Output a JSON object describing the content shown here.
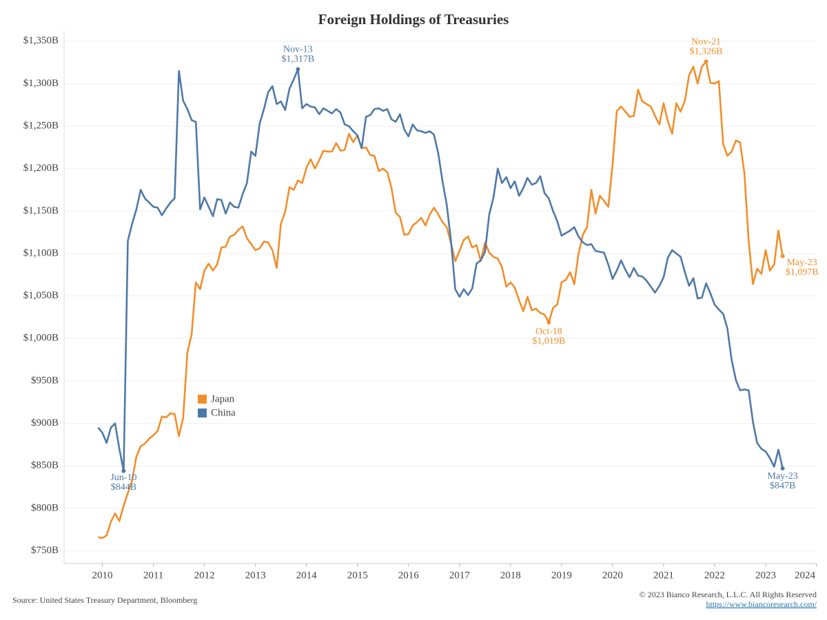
{
  "chart_data": {
    "type": "line",
    "title": "Foreign Holdings of Treasuries",
    "x": [
      2009.917,
      2010,
      2010.083,
      2010.167,
      2010.25,
      2010.333,
      2010.417,
      2010.5,
      2010.583,
      2010.667,
      2010.75,
      2010.833,
      2010.917,
      2011,
      2011.083,
      2011.167,
      2011.25,
      2011.333,
      2011.417,
      2011.5,
      2011.583,
      2011.667,
      2011.75,
      2011.833,
      2011.917,
      2012,
      2012.083,
      2012.167,
      2012.25,
      2012.333,
      2012.417,
      2012.5,
      2012.583,
      2012.667,
      2012.75,
      2012.833,
      2012.917,
      2013,
      2013.083,
      2013.167,
      2013.25,
      2013.333,
      2013.417,
      2013.5,
      2013.583,
      2013.667,
      2013.75,
      2013.833,
      2013.917,
      2014,
      2014.083,
      2014.167,
      2014.25,
      2014.333,
      2014.417,
      2014.5,
      2014.583,
      2014.667,
      2014.75,
      2014.833,
      2014.917,
      2015,
      2015.083,
      2015.167,
      2015.25,
      2015.333,
      2015.417,
      2015.5,
      2015.583,
      2015.667,
      2015.75,
      2015.833,
      2015.917,
      2016,
      2016.083,
      2016.167,
      2016.25,
      2016.333,
      2016.417,
      2016.5,
      2016.583,
      2016.667,
      2016.75,
      2016.833,
      2016.917,
      2017,
      2017.083,
      2017.167,
      2017.25,
      2017.333,
      2017.417,
      2017.5,
      2017.583,
      2017.667,
      2017.75,
      2017.833,
      2017.917,
      2018,
      2018.083,
      2018.167,
      2018.25,
      2018.333,
      2018.417,
      2018.5,
      2018.583,
      2018.667,
      2018.75,
      2018.833,
      2018.917,
      2019,
      2019.083,
      2019.167,
      2019.25,
      2019.333,
      2019.417,
      2019.5,
      2019.583,
      2019.667,
      2019.75,
      2019.833,
      2019.917,
      2020,
      2020.083,
      2020.167,
      2020.25,
      2020.333,
      2020.417,
      2020.5,
      2020.583,
      2020.667,
      2020.75,
      2020.833,
      2020.917,
      2021,
      2021.083,
      2021.167,
      2021.25,
      2021.333,
      2021.417,
      2021.5,
      2021.583,
      2021.667,
      2021.75,
      2021.833,
      2021.917,
      2022,
      2022.083,
      2022.167,
      2022.25,
      2022.333,
      2022.417,
      2022.5,
      2022.583,
      2022.667,
      2022.75,
      2022.833,
      2022.917,
      2023,
      2023.083,
      2023.167,
      2023.25,
      2023.333
    ],
    "series": [
      {
        "name": "Japan",
        "color": "#f28e2b",
        "values": [
          766,
          765,
          768,
          784,
          794,
          785,
          803,
          818,
          833,
          861,
          873,
          876,
          882,
          886,
          891,
          908,
          907,
          912,
          911,
          885,
          906,
          983,
          1005,
          1066,
          1058,
          1080,
          1088,
          1080,
          1087,
          1107,
          1108,
          1120,
          1122,
          1128,
          1132,
          1118,
          1111,
          1104,
          1106,
          1114,
          1113,
          1104,
          1083,
          1135,
          1149,
          1178,
          1175,
          1186,
          1183,
          1201,
          1211,
          1200,
          1210,
          1221,
          1220,
          1220,
          1230,
          1221,
          1222,
          1241,
          1231,
          1239,
          1224,
          1225,
          1216,
          1215,
          1197,
          1200,
          1196,
          1177,
          1148,
          1143,
          1122,
          1123,
          1133,
          1137,
          1142,
          1133,
          1146,
          1154,
          1146,
          1137,
          1131,
          1112,
          1091,
          1103,
          1116,
          1120,
          1107,
          1110,
          1091,
          1113,
          1101,
          1096,
          1094,
          1084,
          1061,
          1066,
          1060,
          1045,
          1032,
          1049,
          1033,
          1035,
          1030,
          1028,
          1019,
          1036,
          1040,
          1066,
          1069,
          1078,
          1064,
          1100,
          1122,
          1131,
          1175,
          1147,
          1168,
          1162,
          1155,
          1205,
          1268,
          1273,
          1267,
          1261,
          1262,
          1293,
          1279,
          1276,
          1273,
          1262,
          1252,
          1277,
          1256,
          1241,
          1277,
          1267,
          1280,
          1310,
          1320,
          1300,
          1320,
          1326,
          1301,
          1300,
          1303,
          1229,
          1215,
          1220,
          1233,
          1231,
          1195,
          1115,
          1064,
          1082,
          1076,
          1104,
          1080,
          1087,
          1127,
          1097
        ]
      },
      {
        "name": "China",
        "color": "#4e79a7",
        "values": [
          895,
          889,
          877,
          895,
          900,
          870,
          844,
          1115,
          1135,
          1152,
          1175,
          1165,
          1160,
          1155,
          1154,
          1145,
          1153,
          1160,
          1165,
          1315,
          1280,
          1270,
          1257,
          1255,
          1152,
          1166,
          1155,
          1144,
          1164,
          1163,
          1147,
          1160,
          1155,
          1154,
          1170,
          1183,
          1220,
          1215,
          1253,
          1270,
          1290,
          1297,
          1276,
          1279,
          1269,
          1294,
          1305,
          1317,
          1271,
          1276,
          1273,
          1272,
          1264,
          1271,
          1268,
          1265,
          1270,
          1266,
          1252,
          1250,
          1244,
          1239,
          1224,
          1261,
          1263,
          1270,
          1271,
          1268,
          1270,
          1258,
          1255,
          1264,
          1246,
          1238,
          1252,
          1245,
          1244,
          1242,
          1244,
          1240,
          1218,
          1185,
          1157,
          1115,
          1058,
          1049,
          1058,
          1051,
          1059,
          1088,
          1092,
          1102,
          1146,
          1166,
          1200,
          1183,
          1190,
          1177,
          1185,
          1168,
          1177,
          1189,
          1181,
          1183,
          1191,
          1171,
          1165,
          1150,
          1138,
          1121,
          1124,
          1127,
          1131,
          1120,
          1113,
          1110,
          1111,
          1103,
          1102,
          1101,
          1087,
          1070,
          1080,
          1092,
          1081,
          1072,
          1083,
          1074,
          1073,
          1068,
          1061,
          1054,
          1062,
          1072,
          1095,
          1104,
          1100,
          1096,
          1078,
          1062,
          1071,
          1047,
          1048,
          1065,
          1053,
          1040,
          1034,
          1029,
          1012,
          975,
          951,
          939,
          940,
          939,
          902,
          877,
          870,
          867,
          859,
          849,
          869,
          847
        ]
      }
    ],
    "xlim": [
      2009.25,
      2024
    ],
    "xticks": [
      2010,
      2011,
      2012,
      2013,
      2014,
      2015,
      2016,
      2017,
      2018,
      2019,
      2020,
      2021,
      2022,
      2023,
      2024
    ],
    "ylim": [
      735,
      1362
    ],
    "yticks": [
      {
        "value": 750,
        "label": "$750B"
      },
      {
        "value": 800,
        "label": "$800B"
      },
      {
        "value": 850,
        "label": "$850B"
      },
      {
        "value": 900,
        "label": "$900B"
      },
      {
        "value": 950,
        "label": "$950B"
      },
      {
        "value": 1000,
        "label": "$1,000B"
      },
      {
        "value": 1050,
        "label": "$1,050B"
      },
      {
        "value": 1100,
        "label": "$1,100B"
      },
      {
        "value": 1150,
        "label": "$1,150B"
      },
      {
        "value": 1200,
        "label": "$1,200B"
      },
      {
        "value": 1250,
        "label": "$1,250B"
      },
      {
        "value": 1300,
        "label": "$1,300B"
      },
      {
        "value": 1350,
        "label": "$1,350B"
      }
    ],
    "grid": true,
    "legend": "center-left",
    "annotations": [
      {
        "x": 2013.833,
        "y": 1317,
        "lines": [
          "Nov-13",
          "$1,317B"
        ],
        "color": "#4e79a7"
      },
      {
        "x": 2010.417,
        "y": 844,
        "lines": [
          "Jun-10",
          "$844B"
        ],
        "color": "#4e79a7"
      },
      {
        "x": 2018.75,
        "y": 1019,
        "lines": [
          "Oct-18",
          "$1,019B"
        ],
        "color": "#f28e2b"
      },
      {
        "x": 2021.833,
        "y": 1326,
        "lines": [
          "Nov-21",
          "$1,326B"
        ],
        "color": "#f28e2b"
      },
      {
        "x": 2023.333,
        "y": 1097,
        "lines": [
          "May-23",
          "$1,097B"
        ],
        "color": "#f28e2b"
      },
      {
        "x": 2023.333,
        "y": 847,
        "lines": [
          "May-23",
          "$847B"
        ],
        "color": "#4e79a7"
      }
    ],
    "source": "Source: United States Treasury Department, Bloomberg",
    "copyright": "© 2023 Bianco Research, L.L.C. All Rights Reserved",
    "url": "https://www.biancoresearch.com/"
  }
}
